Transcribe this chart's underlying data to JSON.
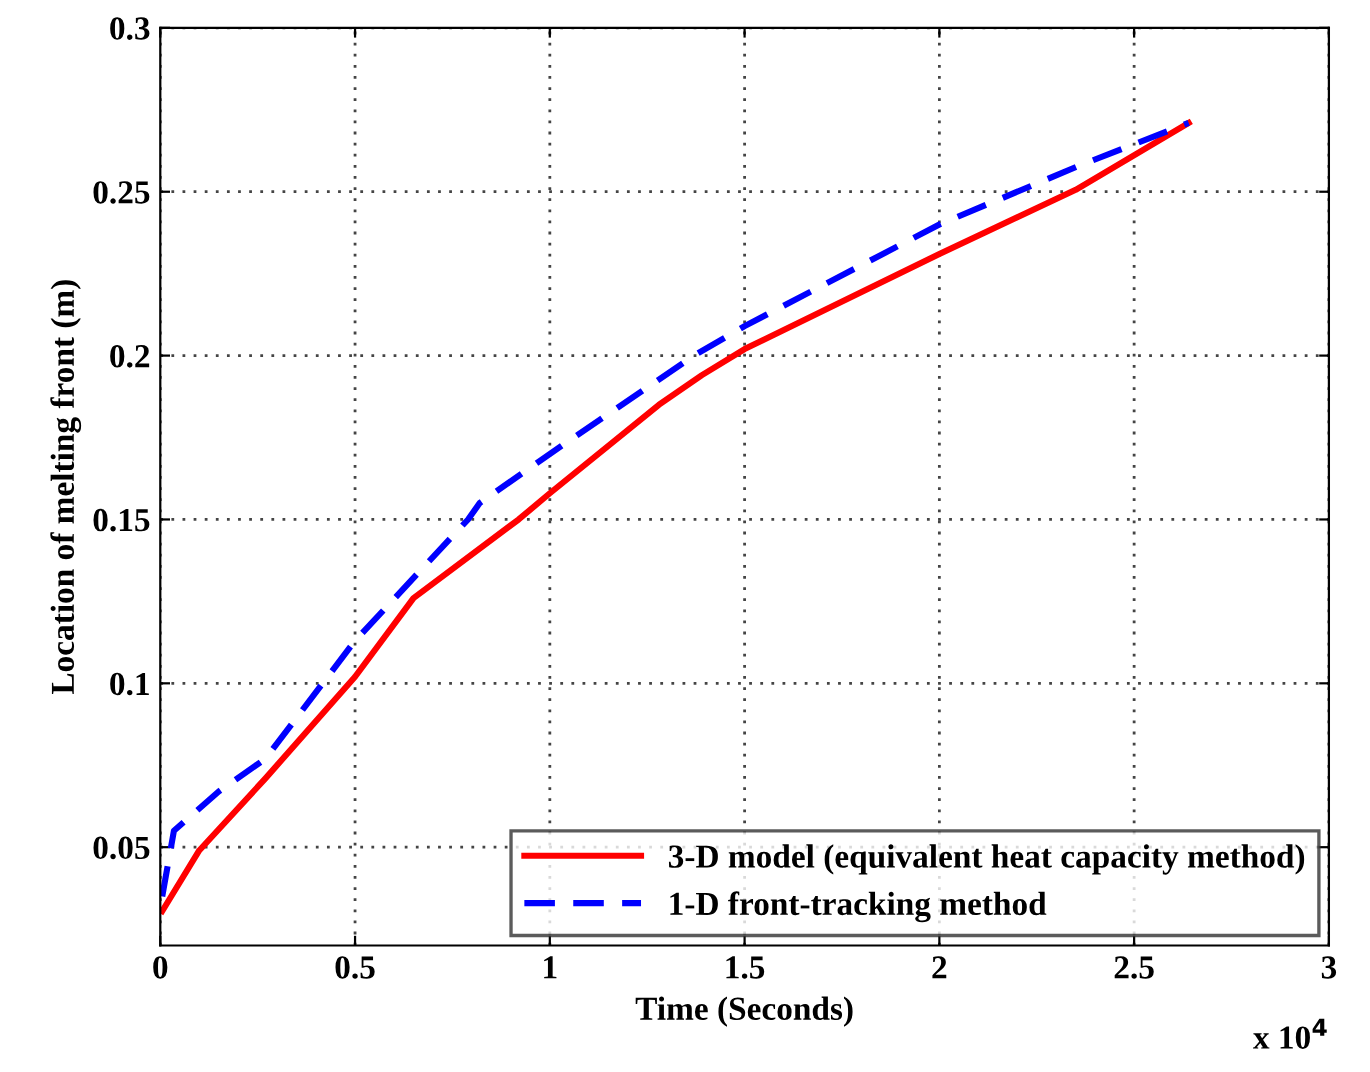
{
  "chart_data": {
    "type": "line",
    "xlabel": "Time (Seconds)",
    "ylabel": "Location of melting front (m)",
    "xlim": [
      0,
      3
    ],
    "ylim": [
      0.02,
      0.3
    ],
    "xticks": [
      0,
      0.5,
      1,
      1.5,
      2,
      2.5,
      3
    ],
    "yticks": [
      0.05,
      0.1,
      0.15,
      0.2,
      0.25,
      0.3
    ],
    "annotations": [
      "x 10$^{4}$"
    ],
    "grid": true,
    "legend": "bottom right",
    "series": [
      {
        "name": "3-D model (equivalent heat capacity method)",
        "color": "#ff0000",
        "line_style": "solid",
        "x": [
          0.005,
          0.1,
          0.27,
          0.5,
          0.65,
          0.92,
          1.0,
          1.28,
          1.39,
          1.5,
          2.0,
          2.35,
          2.64
        ],
        "values": [
          0.0305,
          0.049,
          0.071,
          0.102,
          0.126,
          0.15,
          0.158,
          0.185,
          0.194,
          0.202,
          0.231,
          0.2506,
          0.271
        ]
      },
      {
        "name": "1-D front-tracking method",
        "color": "#0000ff",
        "line_style": "dashed",
        "x": [
          0.005,
          0.035,
          0.15,
          0.27,
          0.5,
          0.79,
          0.82,
          1.0,
          1.37,
          1.5,
          2.0,
          2.36,
          2.64
        ],
        "values": [
          0.035,
          0.055,
          0.067,
          0.077,
          0.113,
          0.15,
          0.155,
          0.17,
          0.2,
          0.209,
          0.24,
          0.258,
          0.271
        ]
      }
    ]
  }
}
